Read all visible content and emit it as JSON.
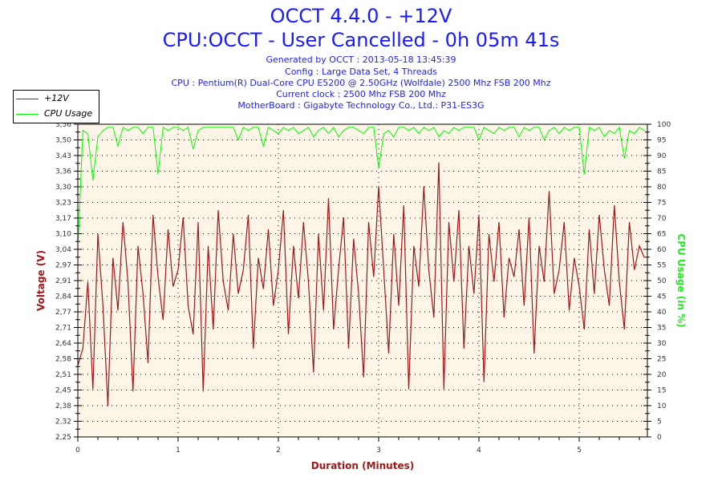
{
  "header": {
    "title": "OCCT 4.4.0 - +12V",
    "subtitle": "CPU:OCCT - User Cancelled - 0h 05m 41s",
    "info": [
      "Generated by OCCT : 2013-05-18 13:45:39",
      "Config : Large Data Set, 4 Threads",
      "CPU : Pentium(R) Dual-Core CPU E5200 @ 2.50GHz (Wolfdale) 2500 Mhz FSB 200 Mhz",
      "Current clock : 2500 Mhz FSB 200 Mhz",
      "MotherBoard : Gigabyte Technology Co., Ltd.: P31-ES3G"
    ]
  },
  "chart_data": {
    "type": "line",
    "title": "OCCT 4.4.0 - +12V",
    "xlabel": "Duration (Minutes)",
    "ylabel": "Voltage (V)",
    "y2label": "CPU Usage (in %)",
    "xlim": [
      0,
      5.68
    ],
    "ylim": [
      2.25,
      3.56
    ],
    "y2lim": [
      0,
      100
    ],
    "x_ticks": [
      "0",
      "1",
      "2",
      "3",
      "4",
      "5"
    ],
    "y_ticks": [
      "2,25",
      "2,32",
      "2,38",
      "2,45",
      "2,51",
      "2,58",
      "2,64",
      "2,71",
      "2,77",
      "2,84",
      "2,91",
      "2,97",
      "3,04",
      "3,10",
      "3,17",
      "3,23",
      "3,30",
      "3,36",
      "3,43",
      "3,50",
      "3,56"
    ],
    "y2_ticks": [
      "0",
      "5",
      "10",
      "15",
      "20",
      "25",
      "30",
      "35",
      "40",
      "45",
      "50",
      "55",
      "60",
      "65",
      "70",
      "75",
      "80",
      "85",
      "90",
      "95",
      "100"
    ],
    "grid": true,
    "legend_position": "top-left",
    "x_start": 0,
    "x_step": 0.05,
    "series": [
      {
        "name": "+12V",
        "axis": "left",
        "color": "#a01818",
        "values": [
          2.55,
          2.62,
          2.9,
          2.45,
          3.1,
          2.8,
          2.38,
          3.0,
          2.78,
          3.15,
          2.9,
          2.44,
          3.05,
          2.85,
          2.56,
          3.18,
          2.92,
          2.74,
          3.12,
          2.88,
          2.95,
          3.17,
          2.8,
          2.68,
          3.15,
          2.44,
          3.05,
          2.7,
          3.2,
          2.9,
          2.78,
          3.1,
          2.85,
          2.95,
          3.18,
          2.62,
          3.0,
          2.87,
          3.12,
          2.8,
          2.95,
          3.2,
          2.68,
          3.05,
          2.83,
          3.15,
          2.9,
          2.52,
          3.1,
          2.78,
          3.25,
          2.7,
          2.95,
          3.17,
          2.62,
          3.08,
          2.85,
          2.5,
          3.15,
          2.92,
          3.3,
          2.95,
          2.6,
          3.1,
          2.8,
          3.22,
          2.45,
          3.05,
          2.88,
          3.3,
          2.95,
          2.75,
          3.4,
          2.45,
          3.15,
          2.9,
          3.2,
          2.62,
          3.05,
          2.85,
          3.18,
          2.48,
          3.1,
          2.9,
          3.15,
          2.75,
          3.0,
          2.92,
          3.12,
          2.8,
          3.17,
          2.6,
          3.05,
          2.9,
          3.28,
          2.85,
          2.95,
          3.15,
          2.78,
          3.0,
          2.88,
          2.7,
          3.12,
          2.85,
          3.18,
          2.95,
          2.8,
          3.22,
          2.9,
          2.7,
          3.15,
          2.95,
          3.05,
          3.0
        ]
      },
      {
        "name": "CPU Usage",
        "axis": "right",
        "color": "#00ff00",
        "values": [
          60,
          98,
          97,
          82,
          96,
          98,
          99,
          99,
          93,
          99,
          98,
          99,
          99,
          97,
          99,
          99,
          84,
          99,
          98,
          99,
          99,
          98,
          99,
          92,
          98,
          99,
          99,
          99,
          99,
          99,
          99,
          99,
          95,
          99,
          98,
          99,
          99,
          93,
          99,
          98,
          97,
          99,
          98,
          99,
          97,
          98,
          99,
          96,
          98,
          99,
          97,
          99,
          96,
          98,
          99,
          99,
          98,
          97,
          99,
          99,
          86,
          97,
          98,
          96,
          99,
          99,
          98,
          99,
          97,
          99,
          98,
          99,
          96,
          98,
          97,
          99,
          98,
          99,
          99,
          99,
          95,
          99,
          98,
          97,
          99,
          98,
          99,
          99,
          96,
          99,
          98,
          99,
          99,
          95,
          98,
          99,
          97,
          99,
          98,
          99,
          99,
          84,
          99,
          98,
          99,
          96,
          98,
          97,
          99,
          89,
          98,
          97,
          99,
          98
        ]
      }
    ]
  }
}
